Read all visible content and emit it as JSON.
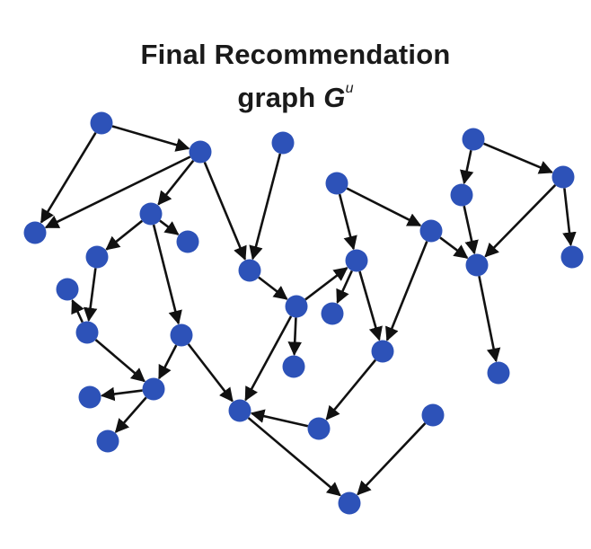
{
  "title": {
    "line1": "Final Recommendation",
    "line2_prefix": "graph ",
    "symbol": "G",
    "superscript": "u"
  },
  "style": {
    "node_color": "#2d52b8",
    "edge_color": "#111111"
  },
  "graph": {
    "nodes": [
      "n1",
      "n2",
      "n3",
      "n4",
      "n5",
      "n6",
      "n7",
      "n8",
      "n9",
      "n10",
      "n11",
      "n12",
      "n13",
      "n14",
      "n15",
      "n16",
      "n17",
      "n18",
      "n19",
      "n20",
      "n21",
      "n22",
      "n23",
      "n24",
      "n25",
      "n26",
      "n27",
      "n28",
      "n29",
      "n30",
      "n31",
      "n32",
      "n33",
      "n34",
      "n35"
    ],
    "edges": [
      [
        "n1",
        "n3"
      ],
      [
        "n1",
        "n7"
      ],
      [
        "n3",
        "n7"
      ],
      [
        "n3",
        "n8"
      ],
      [
        "n3",
        "n16"
      ],
      [
        "n2",
        "n16"
      ],
      [
        "n8",
        "n9"
      ],
      [
        "n8",
        "n10"
      ],
      [
        "n8",
        "n14"
      ],
      [
        "n10",
        "n13"
      ],
      [
        "n13",
        "n11"
      ],
      [
        "n13",
        "n20"
      ],
      [
        "n14",
        "n20"
      ],
      [
        "n14",
        "n27"
      ],
      [
        "n20",
        "n19"
      ],
      [
        "n20",
        "n21"
      ],
      [
        "n16",
        "n17"
      ],
      [
        "n17",
        "n18"
      ],
      [
        "n17",
        "n23"
      ],
      [
        "n17",
        "n27"
      ],
      [
        "n4",
        "n15"
      ],
      [
        "n4",
        "n12"
      ],
      [
        "n12",
        "n18"
      ],
      [
        "n12",
        "n24"
      ],
      [
        "n18",
        "n22"
      ],
      [
        "n18",
        "n24"
      ],
      [
        "n24",
        "n28"
      ],
      [
        "n28",
        "n27"
      ],
      [
        "n27",
        "n33"
      ],
      [
        "n12",
        "n6"
      ],
      [
        "n6",
        "n25"
      ],
      [
        "n5",
        "n25"
      ],
      [
        "n5",
        "n26"
      ],
      [
        "n26",
        "n30"
      ],
      [
        "n26",
        "n31"
      ],
      [
        "n30",
        "n31"
      ],
      [
        "n31",
        "n32"
      ],
      [
        "n29",
        "n33"
      ]
    ]
  }
}
